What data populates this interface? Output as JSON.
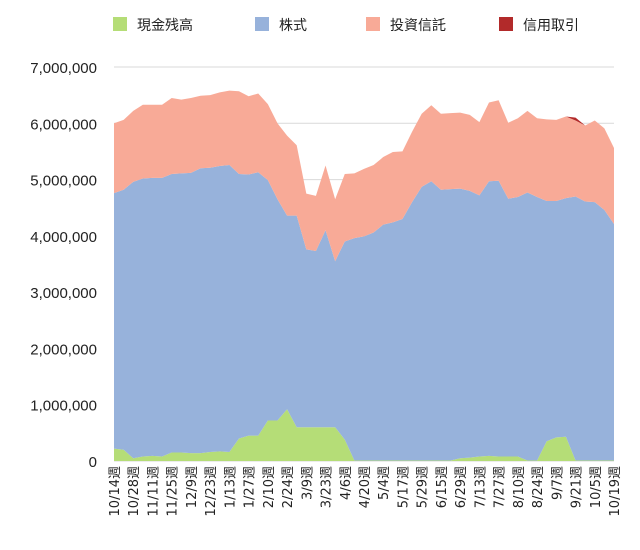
{
  "chart_data": {
    "type": "area",
    "stacked": true,
    "legend_position": "top",
    "grid": true,
    "ylim": [
      0,
      7000000
    ],
    "yticks": [
      0,
      1000000,
      2000000,
      3000000,
      4000000,
      5000000,
      6000000,
      7000000
    ],
    "ytick_labels": [
      "0",
      "1,000,000",
      "2,000,000",
      "3,000,000",
      "4,000,000",
      "5,000,000",
      "6,000,000",
      "7,000,000"
    ],
    "x_labels": [
      "10/14週",
      "10/28週",
      "11/11週",
      "11/25週",
      "12/9週",
      "12/23週",
      "1/13週",
      "1/27週",
      "2/10週",
      "2/24週",
      "3/9週",
      "3/23週",
      "4/6週",
      "4/20週",
      "5/4週",
      "5/17週",
      "5/29週",
      "6/15週",
      "6/29週",
      "7/13週",
      "7/27週",
      "8/10週",
      "8/24週",
      "9/7週",
      "9/21週",
      "10/5週",
      "10/19週"
    ],
    "n_points": 53,
    "series": [
      {
        "name": "現金残高",
        "color": "#b5dd77",
        "values": [
          220000,
          200000,
          50000,
          80000,
          90000,
          80000,
          150000,
          150000,
          140000,
          140000,
          160000,
          170000,
          160000,
          400000,
          450000,
          450000,
          720000,
          720000,
          920000,
          600000,
          600000,
          600000,
          600000,
          600000,
          380000,
          10000,
          10000,
          10000,
          10000,
          10000,
          10000,
          10000,
          10000,
          10000,
          10000,
          10000,
          50000,
          60000,
          80000,
          90000,
          80000,
          80000,
          80000,
          10000,
          10000,
          350000,
          420000,
          430000,
          10000,
          10000,
          10000,
          10000,
          10000
        ]
      },
      {
        "name": "株式",
        "color": "#97b2db",
        "values": [
          4540000,
          4620000,
          4910000,
          4940000,
          4940000,
          4950000,
          4950000,
          4960000,
          4980000,
          5060000,
          5050000,
          5070000,
          5100000,
          4700000,
          4640000,
          4680000,
          4270000,
          3930000,
          3440000,
          3760000,
          3160000,
          3130000,
          3500000,
          2950000,
          3520000,
          3950000,
          3980000,
          4050000,
          4190000,
          4230000,
          4290000,
          4590000,
          4860000,
          4960000,
          4810000,
          4820000,
          4790000,
          4740000,
          4640000,
          4880000,
          4900000,
          4580000,
          4610000,
          4760000,
          4680000,
          4270000,
          4200000,
          4240000,
          4690000,
          4600000,
          4590000,
          4450000,
          4200000
        ]
      },
      {
        "name": "投資信託",
        "color": "#f8aa97",
        "values": [
          1240000,
          1240000,
          1260000,
          1310000,
          1300000,
          1300000,
          1350000,
          1310000,
          1330000,
          1290000,
          1290000,
          1310000,
          1320000,
          1470000,
          1390000,
          1400000,
          1350000,
          1350000,
          1420000,
          1250000,
          990000,
          980000,
          1150000,
          1100000,
          1200000,
          1150000,
          1200000,
          1200000,
          1200000,
          1250000,
          1200000,
          1250000,
          1300000,
          1350000,
          1350000,
          1350000,
          1350000,
          1350000,
          1300000,
          1400000,
          1430000,
          1350000,
          1400000,
          1450000,
          1400000,
          1450000,
          1440000,
          1450000,
          1350000,
          1350000,
          1450000,
          1450000,
          1350000
        ]
      },
      {
        "name": "信用取引",
        "color": "#b22a2a",
        "values": [
          0,
          0,
          0,
          0,
          0,
          0,
          0,
          0,
          0,
          0,
          0,
          0,
          0,
          0,
          0,
          0,
          0,
          0,
          0,
          0,
          0,
          0,
          0,
          0,
          0,
          0,
          0,
          0,
          0,
          0,
          0,
          0,
          0,
          0,
          0,
          0,
          0,
          0,
          0,
          0,
          0,
          0,
          0,
          0,
          0,
          0,
          0,
          0,
          50000,
          0,
          0,
          0,
          0
        ]
      }
    ]
  }
}
